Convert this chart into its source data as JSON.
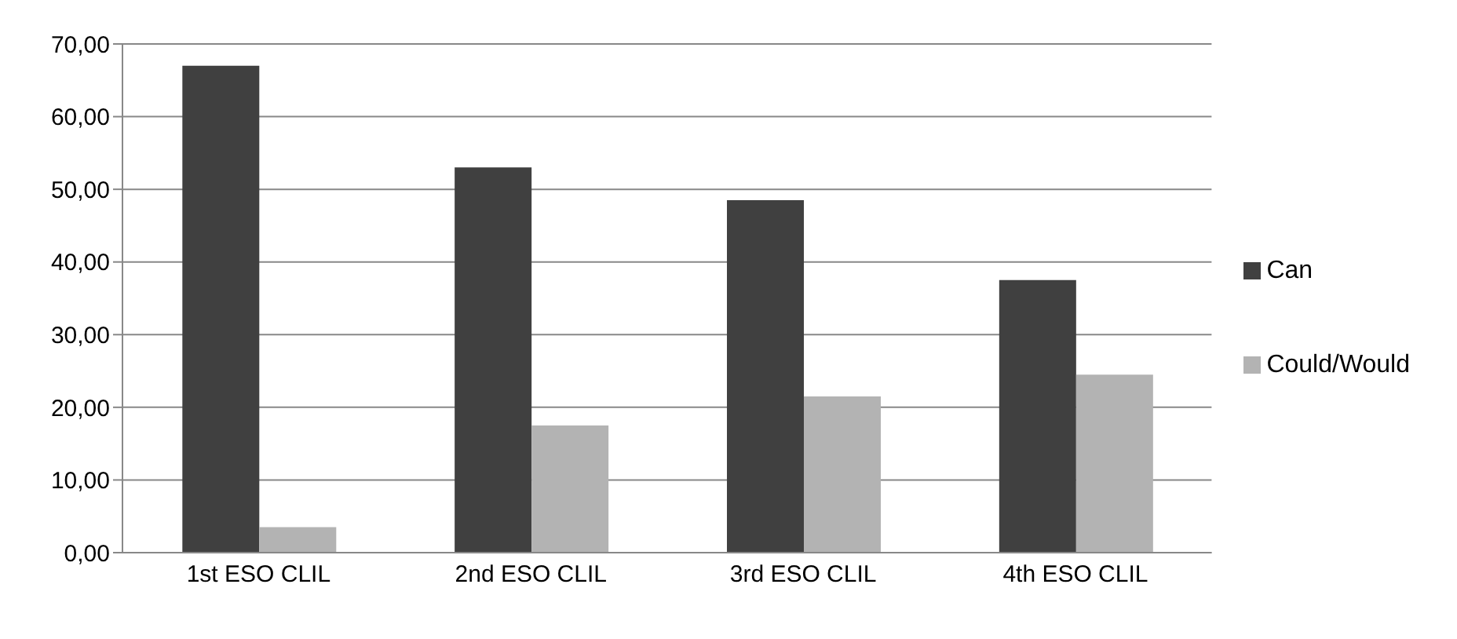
{
  "chart_data": {
    "type": "bar",
    "categories": [
      "1st ESO CLIL",
      "2nd ESO CLIL",
      "3rd ESO CLIL",
      "4th ESO CLIL"
    ],
    "series": [
      {
        "name": "Can",
        "color": "#404040",
        "values": [
          67,
          53,
          48.5,
          37.5
        ]
      },
      {
        "name": "Could/Would",
        "color": "#b3b3b3",
        "values": [
          3.5,
          17.5,
          21.5,
          24.5
        ]
      }
    ],
    "ylim": [
      0,
      70
    ],
    "yticks": [
      {
        "value": 0,
        "label": "0,00"
      },
      {
        "value": 10,
        "label": "10,00"
      },
      {
        "value": 20,
        "label": "20,00"
      },
      {
        "value": 30,
        "label": "30,00"
      },
      {
        "value": 40,
        "label": "40,00"
      },
      {
        "value": 50,
        "label": "50,00"
      },
      {
        "value": 60,
        "label": "60,00"
      },
      {
        "value": 70,
        "label": "70,00"
      }
    ],
    "grid": "y",
    "legend": "right"
  }
}
